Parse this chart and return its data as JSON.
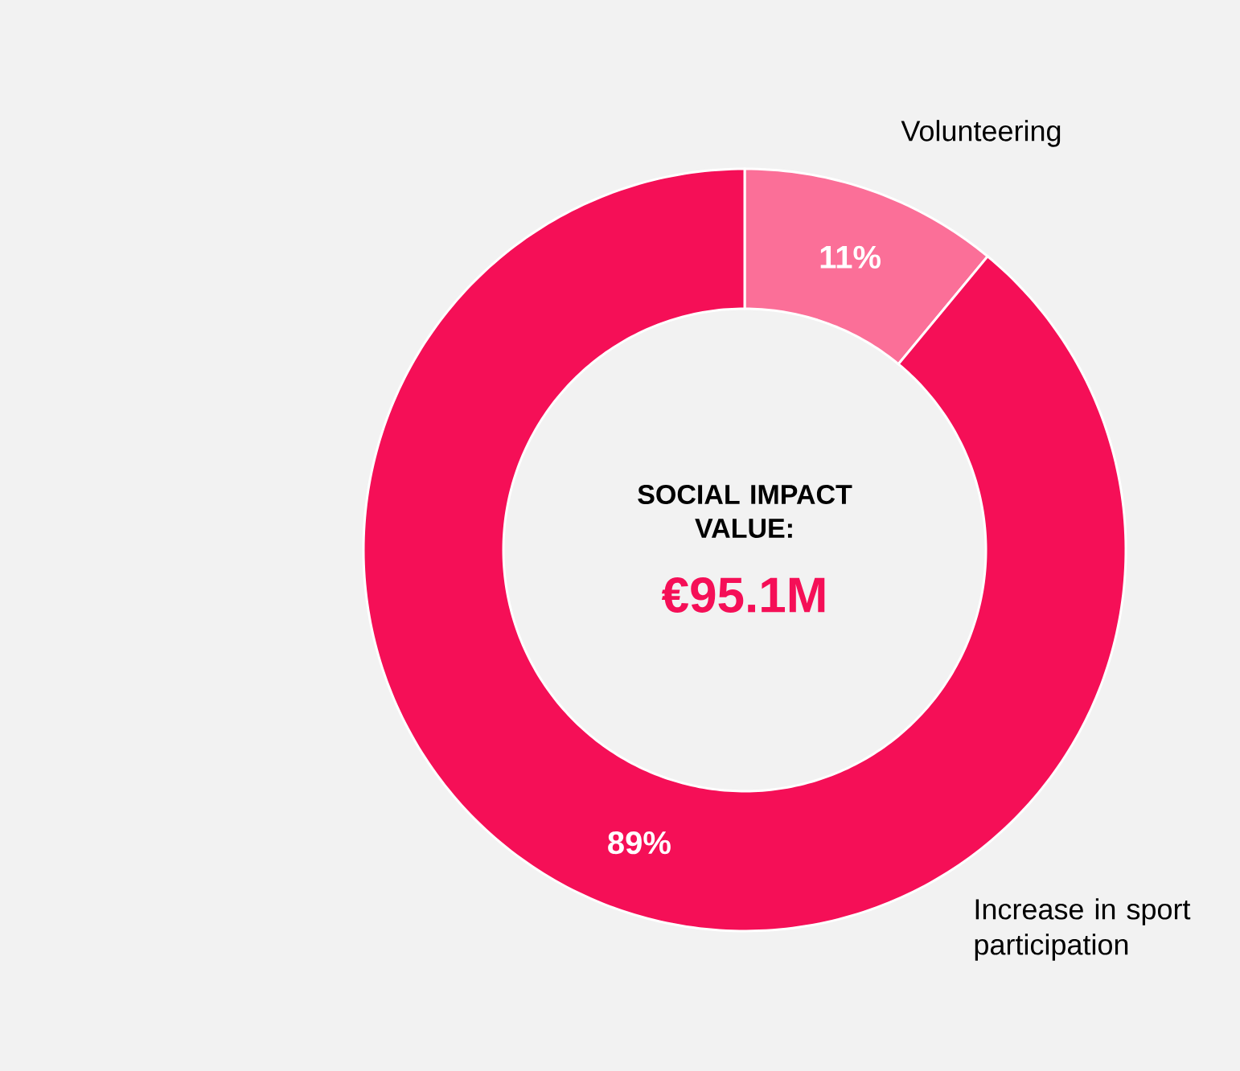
{
  "chart_data": {
    "type": "donut",
    "title": "SOCIAL IMPACT VALUE:",
    "subtitle": "€95.1M",
    "categories": [
      "Volunteering",
      "Increase in sport participation"
    ],
    "values": [
      11,
      89
    ],
    "value_labels": [
      "11%",
      "89%"
    ],
    "colors": [
      "#fb6f98",
      "#f50f57"
    ]
  }
}
